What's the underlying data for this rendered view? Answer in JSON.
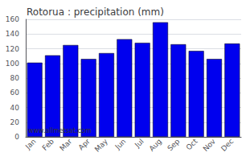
{
  "chart_data": {
    "type": "bar",
    "title": "Rotorua : precipitation (mm)",
    "categories": [
      "Jan",
      "Feb",
      "Mar",
      "Apr",
      "May",
      "Jun",
      "Jul",
      "Aug",
      "Sep",
      "Oct",
      "Nov",
      "Dec"
    ],
    "values": [
      101,
      111,
      125,
      106,
      114,
      133,
      128,
      156,
      126,
      117,
      106,
      127
    ],
    "color": "#0000EE",
    "ylim": [
      0,
      160
    ],
    "yticks": [
      0,
      20,
      40,
      60,
      80,
      100,
      120,
      140,
      160
    ],
    "grid": true,
    "annotations": [
      "www.allmetsat.com"
    ]
  }
}
